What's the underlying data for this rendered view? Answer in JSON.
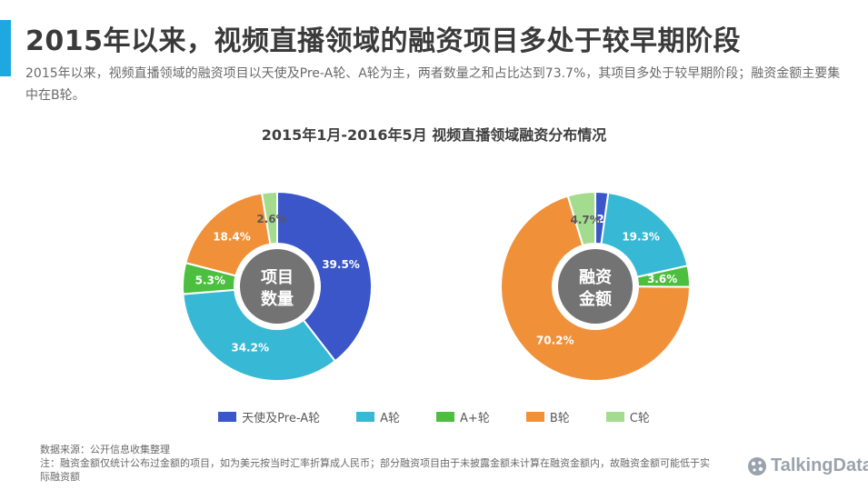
{
  "header": {
    "title": "2015年以来，视频直播领域的融资项目多处于较早期阶段",
    "subtitle": "2015年以来，视频直播领域的融资项目以天使及Pre-A轮、A轮为主，两者数量之和占比达到73.7%，其项目多处于较早期阶段；融资金额主要集中在B轮。"
  },
  "colors": {
    "accent": "#1ea7e1",
    "angel": "#3b56c8",
    "a": "#37b9d5",
    "aplus": "#4cbf3f",
    "b": "#f0913a",
    "c": "#a4dc8f",
    "center": "#737373"
  },
  "chart_data": [
    {
      "type": "pie",
      "title": "2015年1月-2016年5月 视频直播领域融资分布情况",
      "center_label": [
        "项目",
        "数量"
      ],
      "categories": [
        "天使及Pre-A轮",
        "A轮",
        "A+轮",
        "B轮",
        "C轮"
      ],
      "values": [
        39.5,
        34.2,
        5.3,
        18.4,
        2.6
      ],
      "value_labels": [
        "39.5%",
        "34.2%",
        "5.3%",
        "18.4%",
        "2.6%"
      ]
    },
    {
      "type": "pie",
      "center_label": [
        "融资",
        "金额"
      ],
      "categories": [
        "天使及Pre-A轮",
        "A轮",
        "A+轮",
        "B轮",
        "C轮"
      ],
      "values": [
        2.2,
        19.3,
        3.6,
        70.2,
        4.7
      ],
      "value_labels": [
        "2.2%",
        "19.3%",
        "3.6%",
        "70.2%",
        "4.7%"
      ]
    }
  ],
  "legend": [
    {
      "label": "天使及Pre-A轮",
      "color": "#3b56c8"
    },
    {
      "label": "A轮",
      "color": "#37b9d5"
    },
    {
      "label": "A+轮",
      "color": "#4cbf3f"
    },
    {
      "label": "B轮",
      "color": "#f0913a"
    },
    {
      "label": "C轮",
      "color": "#a4dc8f"
    }
  ],
  "footer": {
    "source": "数据来源：公开信息收集整理",
    "note": "注：融资金额仅统计公布过金额的项目，如为美元按当时汇率折算成人民币；部分融资项目由于未披露金额未计算在融资金额内，故融资金额可能低于实际融资额"
  },
  "logo": {
    "text": "TalkingData",
    "icon": "talkingdata-logo-icon"
  }
}
